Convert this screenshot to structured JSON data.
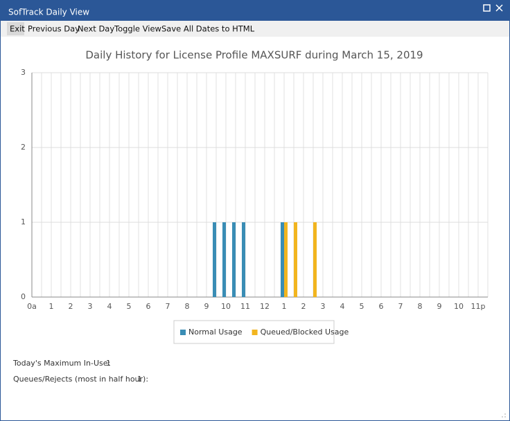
{
  "window": {
    "title": "SofTrack Daily View"
  },
  "menu": [
    "Exit",
    "Previous Day",
    "Next Day",
    "Toggle View",
    "Save All Dates to HTML"
  ],
  "chart_data": {
    "type": "bar",
    "title": "Daily History for License Profile MAXSURF during March 15, 2019",
    "categories": [
      "0a",
      null,
      "1",
      null,
      "2",
      null,
      "3",
      null,
      "4",
      null,
      "5",
      null,
      "6",
      null,
      "7",
      null,
      "8",
      null,
      "9",
      null,
      "10",
      null,
      "11",
      null,
      "12",
      null,
      "1",
      null,
      "2",
      null,
      "3",
      null,
      "4",
      null,
      "5",
      null,
      "6",
      null,
      "7",
      null,
      "8",
      null,
      "9",
      null,
      "10",
      null,
      "11p",
      null
    ],
    "series": [
      {
        "name": "Normal Usage",
        "color": "#3a8db5",
        "values": [
          0,
          0,
          0,
          0,
          0,
          0,
          0,
          0,
          0,
          0,
          0,
          0,
          0,
          0,
          0,
          0,
          0,
          0,
          0,
          1,
          1,
          1,
          1,
          0,
          0,
          0,
          1,
          0,
          0,
          0,
          0,
          0,
          0,
          0,
          0,
          0,
          0,
          0,
          0,
          0,
          0,
          0,
          0,
          0,
          0,
          0,
          0,
          0
        ]
      },
      {
        "name": "Queued/Blocked Usage",
        "color": "#f2b51f",
        "values": [
          0,
          0,
          0,
          0,
          0,
          0,
          0,
          0,
          0,
          0,
          0,
          0,
          0,
          0,
          0,
          0,
          0,
          0,
          0,
          0,
          0,
          0,
          0,
          0,
          0,
          0,
          1,
          1,
          0,
          1,
          0,
          0,
          0,
          0,
          0,
          0,
          0,
          0,
          0,
          0,
          0,
          0,
          0,
          0,
          0,
          0,
          0,
          0
        ]
      }
    ],
    "ylim": [
      0,
      3
    ],
    "yticks": [
      0,
      1,
      2,
      3
    ],
    "grid": true
  },
  "stats": [
    {
      "label": "Today's Maximum In-Use:",
      "value": 1
    },
    {
      "label": "Queues/Rejects (most in half hour):",
      "value": 1
    }
  ]
}
